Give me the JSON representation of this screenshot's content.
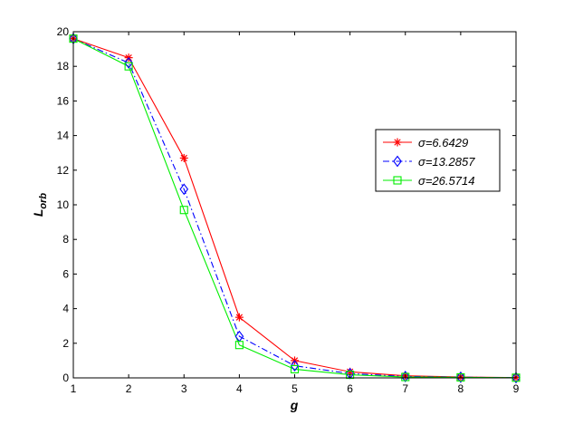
{
  "chart_data": {
    "type": "line",
    "title": "",
    "xlabel": "g",
    "ylabel": {
      "main": "L",
      "sub": "orb"
    },
    "xlim": [
      1,
      9
    ],
    "ylim": [
      0,
      20
    ],
    "x": [
      1,
      2,
      3,
      4,
      5,
      6,
      7,
      8,
      9
    ],
    "x_ticks": [
      "1",
      "2",
      "3",
      "4",
      "5",
      "6",
      "7",
      "8",
      "9"
    ],
    "y_ticks": [
      "0",
      "2",
      "4",
      "6",
      "8",
      "10",
      "12",
      "14",
      "16",
      "18",
      "20"
    ],
    "grid": false,
    "legend_position": "right",
    "series": [
      {
        "name": "σ=6.6429",
        "color": "#ff0000",
        "marker": "asterisk",
        "dash": "solid",
        "values": [
          19.6,
          18.5,
          12.7,
          3.5,
          1.0,
          0.35,
          0.12,
          0.05,
          0.02
        ]
      },
      {
        "name": "σ=13.2857",
        "color": "#0000ff",
        "marker": "diamond",
        "dash": "dashdot",
        "values": [
          19.6,
          18.2,
          10.9,
          2.4,
          0.7,
          0.25,
          0.08,
          0.04,
          0.01
        ]
      },
      {
        "name": "σ=26.5714",
        "color": "#00ee00",
        "marker": "square",
        "dash": "solid",
        "values": [
          19.6,
          18.0,
          9.7,
          1.9,
          0.5,
          0.18,
          0.05,
          0.03,
          0.01
        ]
      }
    ]
  }
}
